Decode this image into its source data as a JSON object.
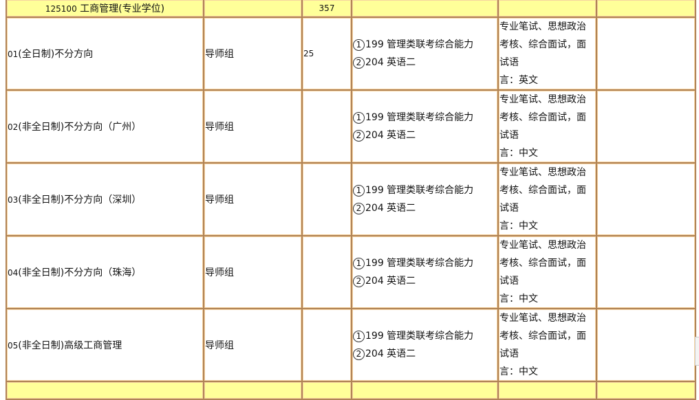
{
  "major": {
    "code": "125100",
    "name": "工商管理(专业学位)",
    "total": "357"
  },
  "rows": [
    {
      "direction_code": "01",
      "direction": "(全日制)不分方向",
      "supervisor": "导师组",
      "quota": "25",
      "exam1": "199 管理类联考综合能力",
      "exam2": "204 英语二",
      "remark": [
        "专业笔试、思想政治",
        "考核、综合面试，面",
        "试语",
        "言：英文"
      ]
    },
    {
      "direction_code": "02",
      "direction": "(非全日制)不分方向（广州）",
      "supervisor": "导师组",
      "quota": "",
      "exam1": "199 管理类联考综合能力",
      "exam2": "204 英语二",
      "remark": [
        "专业笔试、思想政治",
        "考核、综合面试，面",
        "试语",
        "言：中文"
      ]
    },
    {
      "direction_code": "03",
      "direction": "(非全日制)不分方向（深圳）",
      "supervisor": "导师组",
      "quota": "",
      "exam1": "199 管理类联考综合能力",
      "exam2": "204 英语二",
      "remark": [
        "专业笔试、思想政治",
        "考核、综合面试，面",
        "试语",
        "言：中文"
      ]
    },
    {
      "direction_code": "04",
      "direction": "(非全日制)不分方向（珠海）",
      "supervisor": "导师组",
      "quota": "",
      "exam1": "199 管理类联考综合能力",
      "exam2": "204 英语二",
      "remark": [
        "专业笔试、思想政治",
        "考核、综合面试，面",
        "试语",
        "言：中文"
      ]
    },
    {
      "direction_code": "05",
      "direction": "(非全日制)高级工商管理",
      "supervisor": "导师组",
      "quota": "",
      "exam1": "199 管理类联考综合能力",
      "exam2": "204 英语二",
      "remark": [
        "专业笔试、思想政治",
        "考核、综合面试，面",
        "试语",
        "言：中文"
      ]
    }
  ],
  "circled": [
    "1",
    "2"
  ],
  "colors": {
    "header_bg": "#ffff99",
    "border": "#b08356"
  }
}
